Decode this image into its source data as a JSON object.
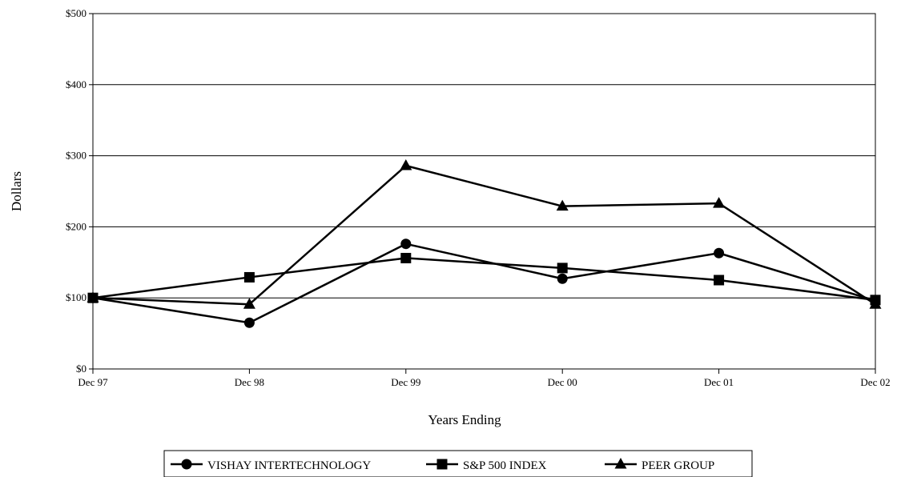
{
  "chart_data": {
    "type": "line",
    "title": "",
    "xlabel": "Years Ending",
    "ylabel": "Dollars",
    "categories": [
      "Dec 97",
      "Dec 98",
      "Dec 99",
      "Dec 00",
      "Dec 01",
      "Dec 02"
    ],
    "ylim": [
      0,
      500
    ],
    "yticks": [
      0,
      100,
      200,
      300,
      400,
      500
    ],
    "ytick_labels": [
      "$0",
      "$100",
      "$200",
      "$300",
      "$400",
      "$500"
    ],
    "grid": true,
    "legend_position": "bottom",
    "series": [
      {
        "name": "VISHAY INTERTECHNOLOGY",
        "marker": "circle",
        "values": [
          100,
          65,
          176,
          127,
          163,
          96
        ]
      },
      {
        "name": "S&P 500 INDEX",
        "marker": "square",
        "values": [
          100,
          129,
          156,
          142,
          125,
          97
        ]
      },
      {
        "name": "PEER GROUP",
        "marker": "triangle",
        "values": [
          100,
          91,
          286,
          229,
          233,
          91
        ]
      }
    ]
  }
}
